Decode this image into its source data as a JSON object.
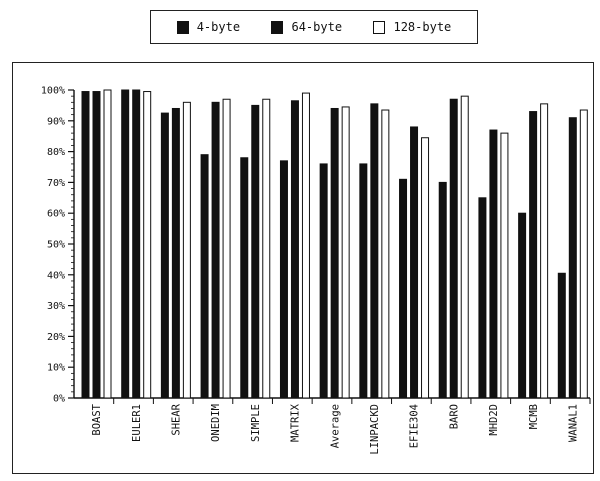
{
  "legend": {
    "items": [
      {
        "label": "4-byte",
        "color": "#111111"
      },
      {
        "label": "64-byte",
        "color": "#111111"
      },
      {
        "label": "128-byte",
        "color": "#ffffff"
      }
    ]
  },
  "chart_data": {
    "type": "bar",
    "title": "",
    "xlabel": "",
    "ylabel": "",
    "ylim": [
      0,
      100
    ],
    "grid": false,
    "legend_placement": "top-center",
    "yticks": [
      "0%",
      "10%",
      "20%",
      "30%",
      "40%",
      "50%",
      "60%",
      "70%",
      "80%",
      "90%",
      "100%"
    ],
    "categories": [
      "BOAST",
      "EULER1",
      "SHEAR",
      "ONEDIM",
      "SIMPLE",
      "MATRIX",
      "Average",
      "LINPACKD",
      "EFIE304",
      "BARO",
      "MHD2D",
      "MCMB",
      "WANAL1"
    ],
    "series": [
      {
        "name": "4-byte",
        "values": [
          99.5,
          100,
          92.5,
          79,
          78,
          77,
          76,
          76,
          71,
          70,
          65,
          60,
          40.5
        ]
      },
      {
        "name": "64-byte",
        "values": [
          99.5,
          100,
          94,
          96,
          95,
          96.5,
          94,
          95.5,
          88,
          97,
          87,
          93,
          91
        ]
      },
      {
        "name": "128-byte",
        "values": [
          100,
          99.5,
          96,
          97,
          97,
          99,
          94.5,
          93.5,
          84.5,
          98,
          86,
          95.5,
          93.5
        ]
      }
    ]
  }
}
